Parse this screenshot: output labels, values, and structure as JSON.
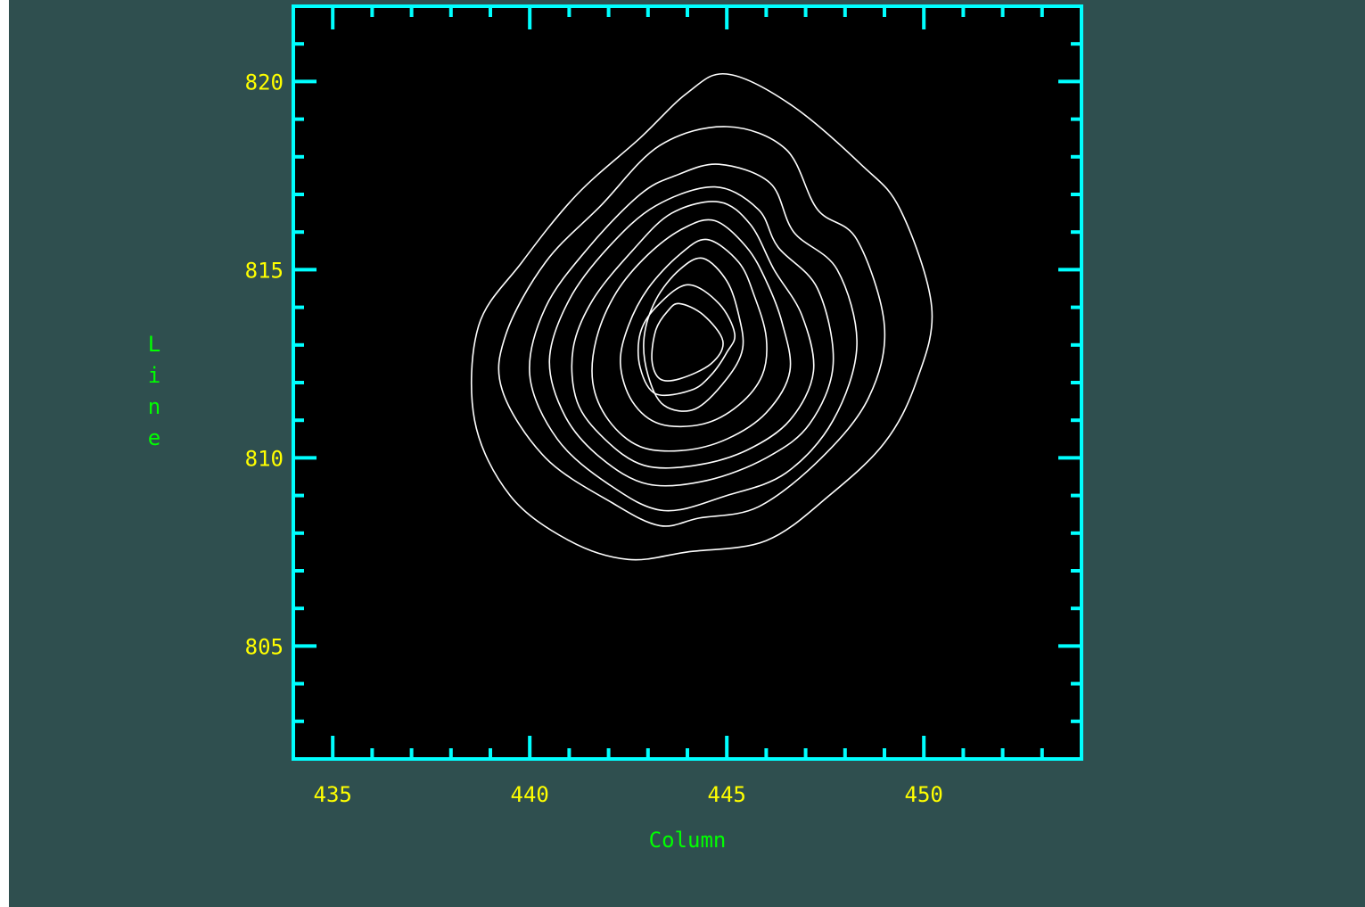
{
  "colors": {
    "background": "#2f4f4f",
    "plot_background": "#000000",
    "frame": "#00ffff",
    "tick_labels": "#ffff00",
    "axis_titles": "#00ff00",
    "contours": "#ffffff"
  },
  "chart_data": {
    "type": "contour",
    "xlabel": "Column",
    "ylabel": "Line",
    "xlim": [
      434,
      454
    ],
    "ylim": [
      802,
      822
    ],
    "xticks": [
      435,
      440,
      445,
      450
    ],
    "yticks": [
      805,
      810,
      815,
      820
    ],
    "x_minor_step": 1,
    "y_minor_step": 1,
    "contours": [
      [
        [
          445.0,
          820.2
        ],
        [
          446.6,
          819.4
        ],
        [
          448.4,
          817.8
        ],
        [
          449.4,
          816.6
        ],
        [
          450.2,
          814.0
        ],
        [
          449.8,
          812.0
        ],
        [
          449.0,
          810.4
        ],
        [
          447.6,
          809.0
        ],
        [
          446.0,
          807.8
        ],
        [
          444.0,
          807.5
        ],
        [
          442.5,
          807.3
        ],
        [
          441.0,
          807.8
        ],
        [
          439.5,
          809.0
        ],
        [
          438.6,
          811.0
        ],
        [
          438.7,
          813.5
        ],
        [
          439.8,
          815.2
        ],
        [
          441.2,
          817.0
        ],
        [
          442.8,
          818.5
        ],
        [
          444.0,
          819.7
        ]
      ],
      [
        [
          445.0,
          818.8
        ],
        [
          446.5,
          818.2
        ],
        [
          447.3,
          816.6
        ],
        [
          448.3,
          815.8
        ],
        [
          449.0,
          813.5
        ],
        [
          448.6,
          811.6
        ],
        [
          447.4,
          810.0
        ],
        [
          445.8,
          808.7
        ],
        [
          444.3,
          808.4
        ],
        [
          443.3,
          808.2
        ],
        [
          442.1,
          808.8
        ],
        [
          440.4,
          810.0
        ],
        [
          439.3,
          811.8
        ],
        [
          439.4,
          813.3
        ],
        [
          440.4,
          815.2
        ],
        [
          441.8,
          816.7
        ],
        [
          443.3,
          818.3
        ]
      ],
      [
        [
          444.8,
          817.8
        ],
        [
          446.1,
          817.3
        ],
        [
          446.7,
          816.0
        ],
        [
          447.8,
          815.0
        ],
        [
          448.3,
          813.0
        ],
        [
          447.7,
          811.0
        ],
        [
          446.5,
          809.6
        ],
        [
          445.0,
          809.0
        ],
        [
          443.4,
          808.6
        ],
        [
          442.0,
          809.3
        ],
        [
          440.7,
          810.5
        ],
        [
          440.0,
          812.2
        ],
        [
          440.4,
          814.0
        ],
        [
          441.5,
          815.6
        ],
        [
          442.8,
          817.0
        ],
        [
          443.7,
          817.5
        ]
      ],
      [
        [
          444.7,
          817.2
        ],
        [
          445.8,
          816.6
        ],
        [
          446.3,
          815.6
        ],
        [
          447.3,
          814.5
        ],
        [
          447.7,
          812.5
        ],
        [
          447.1,
          810.9
        ],
        [
          446.0,
          810.0
        ],
        [
          444.5,
          809.4
        ],
        [
          443.0,
          809.3
        ],
        [
          441.8,
          810.0
        ],
        [
          440.9,
          811.1
        ],
        [
          440.5,
          812.6
        ],
        [
          441.0,
          814.2
        ],
        [
          442.0,
          815.6
        ],
        [
          443.2,
          816.7
        ]
      ],
      [
        [
          444.8,
          816.8
        ],
        [
          445.6,
          816.2
        ],
        [
          446.2,
          815.0
        ],
        [
          446.9,
          813.8
        ],
        [
          447.2,
          812.3
        ],
        [
          446.6,
          811.0
        ],
        [
          445.5,
          810.2
        ],
        [
          444.2,
          809.8
        ],
        [
          442.9,
          809.8
        ],
        [
          441.9,
          810.5
        ],
        [
          441.2,
          811.5
        ],
        [
          441.1,
          812.9
        ],
        [
          441.6,
          814.2
        ],
        [
          442.6,
          815.5
        ],
        [
          443.6,
          816.5
        ]
      ],
      [
        [
          444.7,
          816.3
        ],
        [
          445.5,
          815.6
        ],
        [
          446.0,
          814.7
        ],
        [
          446.4,
          813.6
        ],
        [
          446.6,
          812.3
        ],
        [
          446.0,
          811.2
        ],
        [
          445.0,
          810.5
        ],
        [
          443.9,
          810.2
        ],
        [
          442.8,
          810.3
        ],
        [
          442.0,
          811.0
        ],
        [
          441.6,
          812.0
        ],
        [
          441.7,
          813.2
        ],
        [
          442.2,
          814.4
        ],
        [
          443.0,
          815.4
        ],
        [
          443.9,
          816.1
        ]
      ],
      [
        [
          444.5,
          815.8
        ],
        [
          445.3,
          815.2
        ],
        [
          445.7,
          814.3
        ],
        [
          446.0,
          813.2
        ],
        [
          445.9,
          812.2
        ],
        [
          445.3,
          811.4
        ],
        [
          444.4,
          810.9
        ],
        [
          443.3,
          810.9
        ],
        [
          442.6,
          811.5
        ],
        [
          442.3,
          812.5
        ],
        [
          442.5,
          813.5
        ],
        [
          443.0,
          814.5
        ],
        [
          443.8,
          815.4
        ]
      ],
      [
        [
          444.4,
          815.3
        ],
        [
          445.0,
          814.7
        ],
        [
          445.3,
          813.8
        ],
        [
          445.4,
          812.9
        ],
        [
          445.0,
          812.1
        ],
        [
          444.2,
          811.3
        ],
        [
          443.4,
          811.4
        ],
        [
          443.0,
          812.2
        ],
        [
          442.9,
          813.2
        ],
        [
          443.2,
          814.2
        ],
        [
          443.8,
          815.0
        ]
      ],
      [
        [
          444.0,
          814.6
        ],
        [
          444.8,
          814.1
        ],
        [
          445.2,
          813.3
        ],
        [
          445.0,
          812.8
        ],
        [
          444.6,
          812.2
        ],
        [
          444.1,
          811.8
        ],
        [
          443.2,
          811.7
        ],
        [
          442.8,
          812.4
        ],
        [
          442.8,
          813.3
        ],
        [
          443.2,
          814.0
        ]
      ],
      [
        [
          443.8,
          814.1
        ],
        [
          444.4,
          813.8
        ],
        [
          444.9,
          813.1
        ],
        [
          444.6,
          812.5
        ],
        [
          443.8,
          812.1
        ],
        [
          443.3,
          812.1
        ],
        [
          443.1,
          812.6
        ],
        [
          443.2,
          813.4
        ],
        [
          443.5,
          813.9
        ]
      ]
    ]
  }
}
